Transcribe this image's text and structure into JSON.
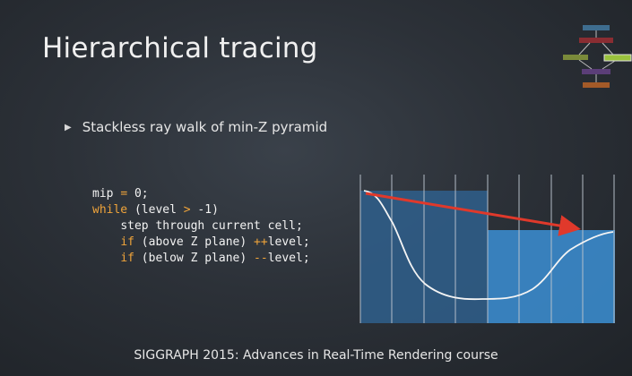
{
  "slide": {
    "title": "Hierarchical tracing",
    "bullet": "Stackless ray walk of min-Z pyramid",
    "footer": "SIGGRAPH 2015: Advances in Real-Time Rendering course"
  },
  "code": {
    "line1": {
      "a": "mip ",
      "op": "=",
      "b": " 0;"
    },
    "line2": {
      "kw": "while",
      "a": " (level ",
      "op": ">",
      "b": " -1)"
    },
    "line3": {
      "indent": "    ",
      "text": "step through current cell;"
    },
    "line4": {
      "indent": "    ",
      "kw": "if",
      "a": " (above Z plane) ",
      "op": "++",
      "b": "level;"
    },
    "line5": {
      "indent": "    ",
      "kw": "if",
      "a": " (below Z plane) ",
      "op": "--",
      "b": "level;"
    }
  },
  "colors": {
    "keyword": "#f0a43a",
    "arrow": "#e0392b",
    "cell_dark": "#2f5f8c",
    "cell_bright": "#3a88c8"
  },
  "icons": {
    "bullet": "triangle-right-icon",
    "logo": "pipeline-diagram-icon"
  }
}
